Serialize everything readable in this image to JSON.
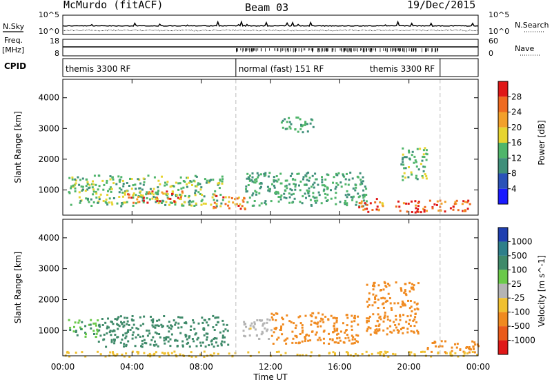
{
  "header": {
    "radar": "McMurdo (fitACF)",
    "beam": "Beam 03",
    "date": "19/Dec/2015"
  },
  "top_panels": {
    "nsky_label": "N.Sky",
    "nsearch_label": "N.Search",
    "freq_label": "Freq.",
    "freq_unit": "[MHz]",
    "nave_label": "Nave",
    "cpid_label": "CPID",
    "noise_left_ticks": [
      "10^5",
      "10^0"
    ],
    "noise_right_ticks": [
      "10^5",
      "10^0"
    ],
    "freq_left_ticks": [
      "18",
      "8"
    ],
    "nave_right_ticks": [
      "60",
      "0"
    ]
  },
  "cpid_segments": [
    {
      "label": "themis 3300 RF",
      "start": 0.0,
      "end": 10.0
    },
    {
      "label": "normal (fast) 151 RF",
      "start": 10.0,
      "end": 21.8
    },
    {
      "label": "themis 3300 RF",
      "start": 21.8,
      "end": 24.0
    }
  ],
  "chart_data": [
    {
      "type": "heatmap",
      "title": "Power",
      "xlabel": "Time UT",
      "ylabel": "Slant Range [km]",
      "x_ticks": [
        "00:00",
        "04:00",
        "08:00",
        "12:00",
        "16:00",
        "20:00",
        "00:00"
      ],
      "x_range_hours": [
        0,
        24
      ],
      "y_ticks": [
        1000,
        2000,
        3000,
        4000
      ],
      "y_range_km": [
        180,
        4600
      ],
      "colorbar": {
        "label": "Power [dB]",
        "ticks": [
          4,
          8,
          12,
          16,
          20,
          24,
          28
        ],
        "range": [
          0,
          32
        ],
        "colors": [
          "#1a1aff",
          "#2a52b8",
          "#3f8f7a",
          "#4fb56a",
          "#e6d430",
          "#f2a02a",
          "#ef6a20",
          "#e01818"
        ]
      },
      "echo_regions": [
        {
          "t_start": 0.3,
          "t_end": 9.2,
          "r_min": 500,
          "r_max": 1500,
          "value": 14
        },
        {
          "t_start": 3.5,
          "t_end": 7.0,
          "r_min": 600,
          "r_max": 1000,
          "value": 24
        },
        {
          "t_start": 8.5,
          "t_end": 10.5,
          "r_min": 400,
          "r_max": 900,
          "value": 22
        },
        {
          "t_start": 10.5,
          "t_end": 17.5,
          "r_min": 500,
          "r_max": 1600,
          "value": 12
        },
        {
          "t_start": 17.0,
          "t_end": 18.5,
          "r_min": 300,
          "r_max": 800,
          "value": 26
        },
        {
          "t_start": 19.0,
          "t_end": 23.5,
          "r_min": 300,
          "r_max": 700,
          "value": 28
        },
        {
          "t_start": 19.5,
          "t_end": 21.0,
          "r_min": 1300,
          "r_max": 2400,
          "value": 14
        },
        {
          "t_start": 12.5,
          "t_end": 14.5,
          "r_min": 2900,
          "r_max": 3400,
          "value": 12
        }
      ]
    },
    {
      "type": "heatmap",
      "title": "Velocity",
      "xlabel": "Time UT",
      "ylabel": "Slant Range [km]",
      "x_ticks": [
        "00:00",
        "04:00",
        "08:00",
        "12:00",
        "16:00",
        "20:00",
        "00:00"
      ],
      "x_range_hours": [
        0,
        24
      ],
      "y_ticks": [
        1000,
        2000,
        3000,
        4000
      ],
      "y_range_km": [
        180,
        4600
      ],
      "colorbar": {
        "label": "Velocity [m s^-1]",
        "ticks": [
          1000,
          500,
          100,
          25,
          -25,
          -100,
          -500,
          -1000
        ],
        "colors": [
          "#1f3fb0",
          "#2e7f8a",
          "#3f8a6a",
          "#6ac94a",
          "#b4b4b4",
          "#f0c030",
          "#f08a20",
          "#ea5a1a",
          "#e01818"
        ]
      },
      "echo_regions": [
        {
          "t_start": 0.3,
          "t_end": 2.0,
          "r_min": 800,
          "r_max": 1400,
          "value": 100
        },
        {
          "t_start": 2.0,
          "t_end": 9.5,
          "r_min": 500,
          "r_max": 1500,
          "value": 300
        },
        {
          "t_start": 10.3,
          "t_end": 12.0,
          "r_min": 700,
          "r_max": 1400,
          "value": -20
        },
        {
          "t_start": 12.0,
          "t_end": 17.0,
          "r_min": 600,
          "r_max": 1600,
          "value": -300
        },
        {
          "t_start": 17.5,
          "t_end": 20.5,
          "r_min": 900,
          "r_max": 2600,
          "value": -300
        },
        {
          "t_start": 21.0,
          "t_end": 24.0,
          "r_min": 300,
          "r_max": 700,
          "value": -150
        },
        {
          "t_start": 0.0,
          "t_end": 24.0,
          "r_min": 180,
          "r_max": 350,
          "value": -60
        }
      ]
    }
  ]
}
